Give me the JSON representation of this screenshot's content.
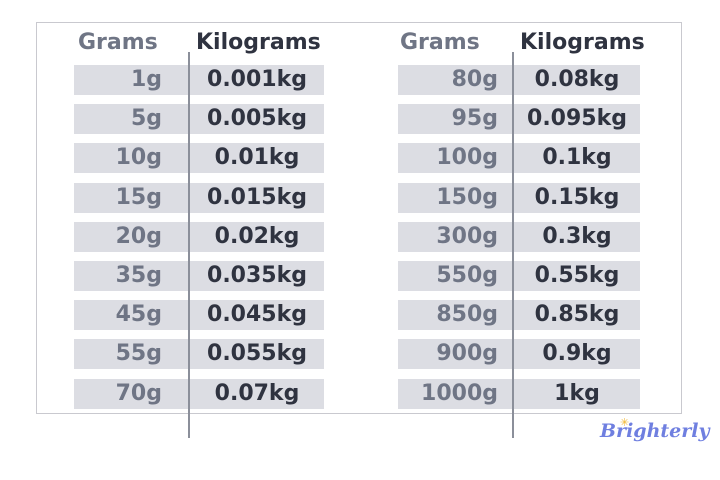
{
  "headers": {
    "grams": "Grams",
    "kilograms": "Kilograms"
  },
  "left_table": [
    {
      "g": "1g",
      "kg": "0.001kg"
    },
    {
      "g": "5g",
      "kg": "0.005kg"
    },
    {
      "g": "10g",
      "kg": "0.01kg"
    },
    {
      "g": "15g",
      "kg": "0.015kg"
    },
    {
      "g": "20g",
      "kg": "0.02kg"
    },
    {
      "g": "35g",
      "kg": "0.035kg"
    },
    {
      "g": "45g",
      "kg": "0.045kg"
    },
    {
      "g": "55g",
      "kg": "0.055kg"
    },
    {
      "g": "70g",
      "kg": "0.07kg"
    }
  ],
  "right_table": [
    {
      "g": "80g",
      "kg": "0.08kg"
    },
    {
      "g": "95g",
      "kg": "0.095kg"
    },
    {
      "g": "100g",
      "kg": "0.1kg"
    },
    {
      "g": "150g",
      "kg": "0.15kg"
    },
    {
      "g": "300g",
      "kg": "0.3kg"
    },
    {
      "g": "550g",
      "kg": "0.55kg"
    },
    {
      "g": "850g",
      "kg": "0.85kg"
    },
    {
      "g": "900g",
      "kg": "0.9kg"
    },
    {
      "g": "1000g",
      "kg": "1kg"
    }
  ],
  "logo": {
    "text": "Brighterly",
    "color": "#6f7fe0",
    "accent": "#f2b830"
  }
}
